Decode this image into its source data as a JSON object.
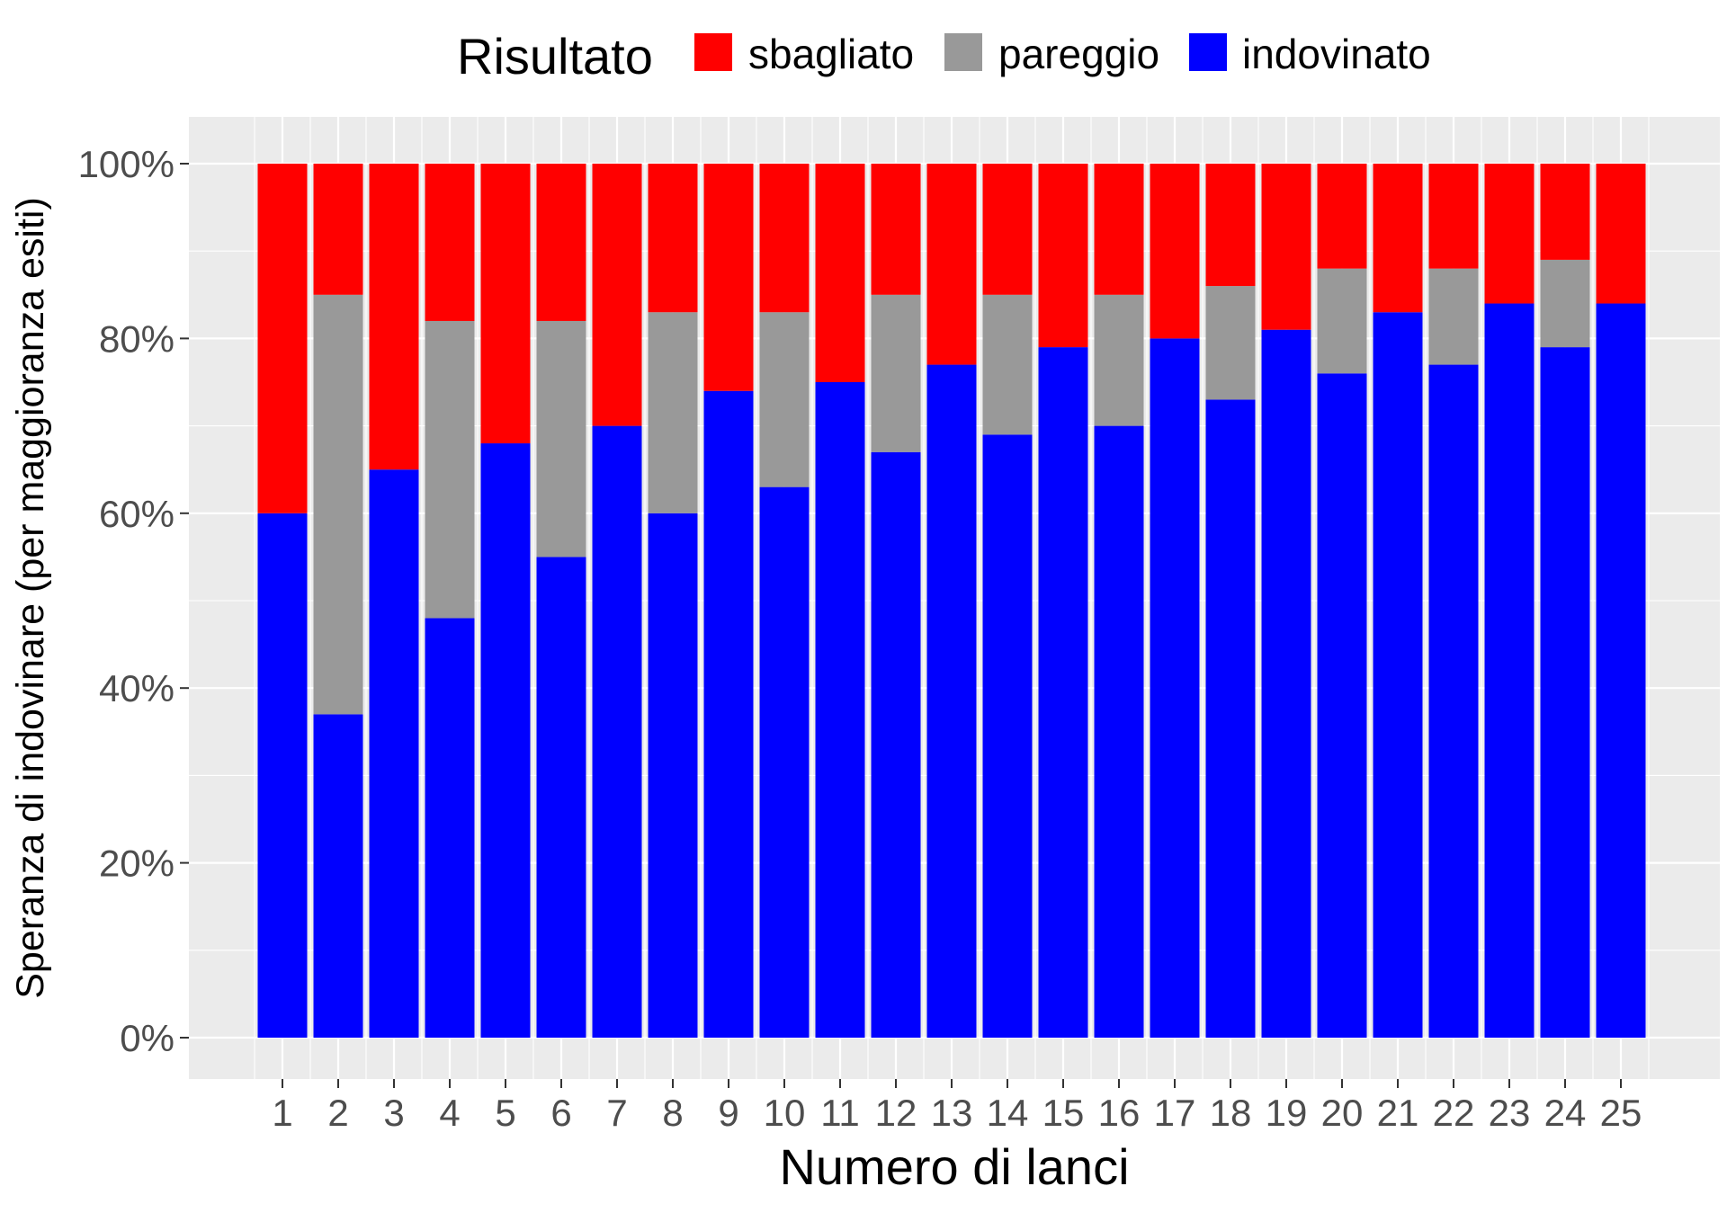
{
  "chart_data": {
    "type": "bar",
    "stacked": true,
    "xlabel": "Numero di lanci",
    "ylabel": "Speranza di indovinare (per maggioranza esiti)",
    "legend": {
      "title": "Risultato",
      "placement": "top",
      "entries": [
        {
          "label": "sbagliato",
          "color": "#FF0000"
        },
        {
          "label": "pareggio",
          "color": "#999999"
        },
        {
          "label": "indovinato",
          "color": "#0000FF"
        }
      ]
    },
    "categories": [
      "1",
      "2",
      "3",
      "4",
      "5",
      "6",
      "7",
      "8",
      "9",
      "10",
      "11",
      "12",
      "13",
      "14",
      "15",
      "16",
      "17",
      "18",
      "19",
      "20",
      "21",
      "22",
      "23",
      "24",
      "25"
    ],
    "series": [
      {
        "name": "indovinato",
        "color": "#0000FF",
        "values": [
          0.6,
          0.37,
          0.65,
          0.48,
          0.68,
          0.55,
          0.7,
          0.6,
          0.74,
          0.63,
          0.75,
          0.67,
          0.77,
          0.69,
          0.79,
          0.7,
          0.8,
          0.73,
          0.81,
          0.76,
          0.83,
          0.77,
          0.84,
          0.79,
          0.84
        ]
      },
      {
        "name": "pareggio",
        "color": "#999999",
        "values": [
          0.0,
          0.48,
          0.0,
          0.34,
          0.0,
          0.27,
          0.0,
          0.23,
          0.0,
          0.2,
          0.0,
          0.18,
          0.0,
          0.16,
          0.0,
          0.15,
          0.0,
          0.13,
          0.0,
          0.12,
          0.0,
          0.11,
          0.0,
          0.1,
          0.0
        ]
      },
      {
        "name": "sbagliato",
        "color": "#FF0000",
        "values": [
          0.4,
          0.15,
          0.35,
          0.18,
          0.32,
          0.18,
          0.3,
          0.17,
          0.26,
          0.17,
          0.25,
          0.15,
          0.23,
          0.15,
          0.21,
          0.15,
          0.2,
          0.14,
          0.19,
          0.12,
          0.17,
          0.12,
          0.16,
          0.11,
          0.16
        ]
      }
    ],
    "ylim": [
      0,
      1
    ],
    "yticks": [
      0,
      0.2,
      0.4,
      0.6,
      0.8,
      1.0
    ],
    "ytick_labels": [
      "0%",
      "20%",
      "40%",
      "60%",
      "80%",
      "100%"
    ],
    "grid": true,
    "panel_background": "#EBEBEB"
  }
}
